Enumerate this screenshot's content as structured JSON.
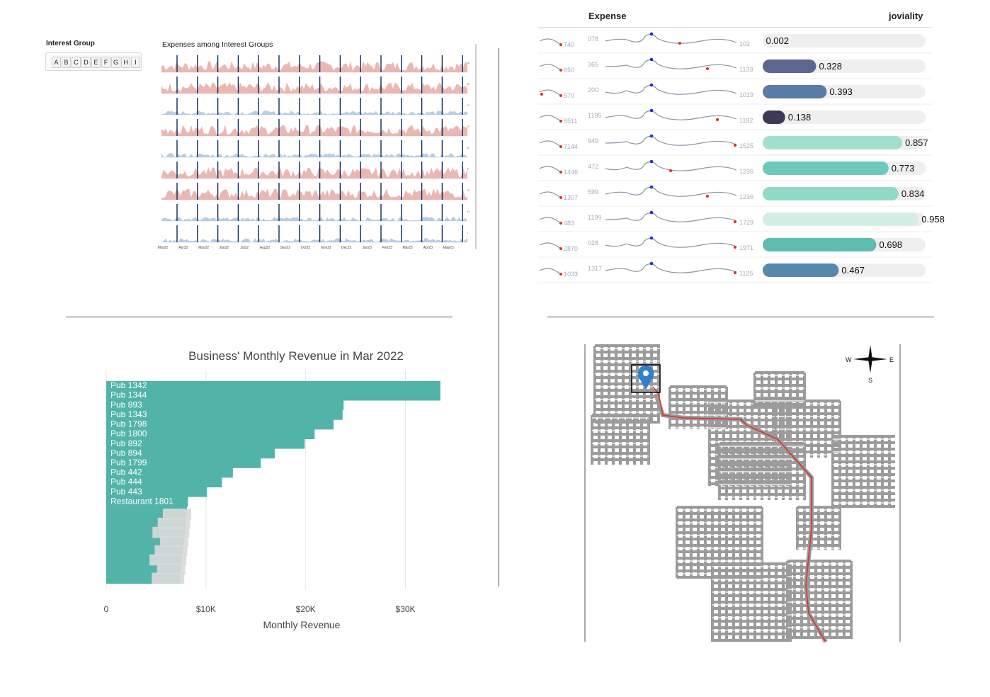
{
  "panel1": {
    "filter_title": "Interest Group",
    "groups": [
      "A",
      "B",
      "C",
      "D",
      "E",
      "F",
      "G",
      "H",
      "I"
    ],
    "chart_title": "Expenses among Interest Groups",
    "months": [
      "Mar22",
      "Apr22",
      "May22",
      "Jun22",
      "Jul22",
      "Aug22",
      "Sep22",
      "Oct22",
      "Nov22",
      "Dec22",
      "Jan23",
      "Feb23",
      "Mar23",
      "Apr23",
      "May23"
    ],
    "colors": {
      "spend": "#e8aaa5",
      "blue": "#a9c6e0",
      "dark": "#0b2a57"
    }
  },
  "panel2": {
    "header_expense": "Expense",
    "header_joviality": "joviality",
    "rows": [
      {
        "left_label": "740",
        "mid_label": "078",
        "right_label": "102",
        "joviality": 0.002,
        "color": "#e4e4e4"
      },
      {
        "left_label": "650",
        "mid_label": "365",
        "right_label": "1133",
        "joviality": 0.328,
        "color": "#5c6691"
      },
      {
        "left_label": "570",
        "mid_label": "200",
        "right_label": "1019",
        "joviality": 0.393,
        "color": "#5a7aa8"
      },
      {
        "left_label": "5511",
        "mid_label": "1195",
        "right_label": "1192",
        "joviality": 0.138,
        "color": "#3d3a57"
      },
      {
        "left_label": "7144",
        "mid_label": "949",
        "right_label": "1525",
        "joviality": 0.857,
        "color": "#a3dfcf"
      },
      {
        "left_label": "1446",
        "mid_label": "472",
        "right_label": "1236",
        "joviality": 0.773,
        "color": "#6ccbb8"
      },
      {
        "left_label": "1307",
        "mid_label": "599",
        "right_label": "1236",
        "joviality": 0.834,
        "color": "#90d9c6"
      },
      {
        "left_label": "483",
        "mid_label": "1199",
        "right_label": "1729",
        "joviality": 0.958,
        "color": "#d4eee4"
      },
      {
        "left_label": "2870",
        "mid_label": "028",
        "right_label": "1971",
        "joviality": 0.698,
        "color": "#5fbcb0"
      },
      {
        "left_label": "1033",
        "mid_label": "1317",
        "right_label": "1125",
        "joviality": 0.467,
        "color": "#5788ad"
      }
    ]
  },
  "chart_data": {
    "type": "bar",
    "title": "Business' Monthly Revenue in Mar 2022",
    "xlabel": "Monthly Revenue",
    "ylabel": "",
    "xlim": [
      0,
      35500
    ],
    "x_ticks": [
      "0",
      "$10K",
      "$20K",
      "$30K"
    ],
    "x_tick_values": [
      0,
      10000,
      20000,
      30000
    ],
    "bar_color": "#52b3a9",
    "categories": [
      "Pub 1342",
      "Pub 1344",
      "Pub 893",
      "Pub 1343",
      "Pub 1798",
      "Pub 1800",
      "Pub 892",
      "Pub 894",
      "Pub 1799",
      "Pub 442",
      "Pub 444",
      "Pub 443",
      "Restaurant 1801"
    ],
    "values": [
      33500,
      33500,
      23800,
      23700,
      22800,
      20900,
      19900,
      16900,
      15500,
      12700,
      11600,
      10100,
      8200
    ],
    "unlabeled_values": [
      8100,
      8000,
      7900,
      7800,
      7700,
      7600,
      7500,
      7400
    ]
  },
  "panel4": {
    "compass": {
      "w": "W",
      "e": "E",
      "s": "S"
    },
    "route_color": "#d9342b",
    "marker_color": "#2f80d0"
  }
}
